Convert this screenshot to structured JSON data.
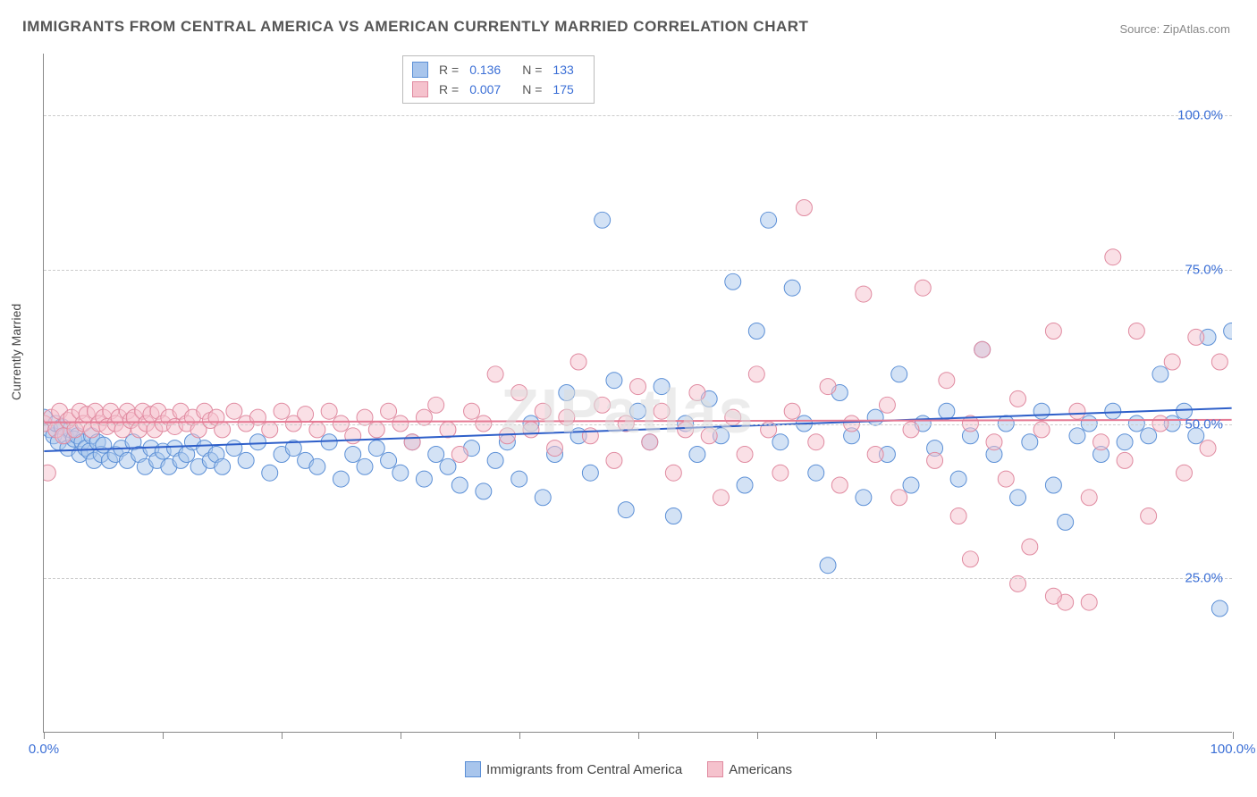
{
  "title": "IMMIGRANTS FROM CENTRAL AMERICA VS AMERICAN CURRENTLY MARRIED CORRELATION CHART",
  "source_label": "Source: ",
  "source_name": "ZipAtlas.com",
  "y_axis_label": "Currently Married",
  "watermark": "ZIPatlas",
  "chart": {
    "type": "scatter",
    "xlim": [
      0,
      100
    ],
    "ylim": [
      0,
      110
    ],
    "x_ticks": [
      0,
      10,
      20,
      30,
      40,
      50,
      60,
      70,
      80,
      90,
      100
    ],
    "x_tick_labels": {
      "0": "0.0%",
      "100": "100.0%"
    },
    "y_gridlines": [
      25,
      50,
      75,
      100
    ],
    "y_tick_labels": {
      "25": "25.0%",
      "50": "50.0%",
      "75": "75.0%",
      "100": "100.0%"
    },
    "background_color": "#ffffff",
    "grid_color": "#cccccc",
    "marker_radius": 9,
    "marker_opacity": 0.5,
    "series": [
      {
        "name": "Immigrants from Central America",
        "fill": "#a8c5ec",
        "stroke": "#5b8fd6",
        "r_label": "R =",
        "r_value": "0.136",
        "n_label": "N =",
        "n_value": "133",
        "trend": {
          "y_at_x0": 45.5,
          "y_at_x100": 52.5,
          "color": "#2e5fc9",
          "width": 2
        },
        "points": [
          [
            0,
            51
          ],
          [
            0.5,
            49
          ],
          [
            0.8,
            48
          ],
          [
            1,
            50
          ],
          [
            1.2,
            47
          ],
          [
            1.5,
            49.5
          ],
          [
            1.8,
            48
          ],
          [
            2,
            46
          ],
          [
            2.2,
            49
          ],
          [
            2.5,
            47.5
          ],
          [
            2.8,
            48
          ],
          [
            3,
            45
          ],
          [
            3.2,
            47
          ],
          [
            3.5,
            46
          ],
          [
            3.8,
            45.5
          ],
          [
            4,
            48
          ],
          [
            4.2,
            44
          ],
          [
            4.5,
            47
          ],
          [
            4.8,
            45
          ],
          [
            5,
            46.5
          ],
          [
            5.5,
            44
          ],
          [
            6,
            45
          ],
          [
            6.5,
            46
          ],
          [
            7,
            44
          ],
          [
            7.5,
            47
          ],
          [
            8,
            45
          ],
          [
            8.5,
            43
          ],
          [
            9,
            46
          ],
          [
            9.5,
            44
          ],
          [
            10,
            45.5
          ],
          [
            10.5,
            43
          ],
          [
            11,
            46
          ],
          [
            11.5,
            44
          ],
          [
            12,
            45
          ],
          [
            12.5,
            47
          ],
          [
            13,
            43
          ],
          [
            13.5,
            46
          ],
          [
            14,
            44
          ],
          [
            14.5,
            45
          ],
          [
            15,
            43
          ],
          [
            16,
            46
          ],
          [
            17,
            44
          ],
          [
            18,
            47
          ],
          [
            19,
            42
          ],
          [
            20,
            45
          ],
          [
            21,
            46
          ],
          [
            22,
            44
          ],
          [
            23,
            43
          ],
          [
            24,
            47
          ],
          [
            25,
            41
          ],
          [
            26,
            45
          ],
          [
            27,
            43
          ],
          [
            28,
            46
          ],
          [
            29,
            44
          ],
          [
            30,
            42
          ],
          [
            31,
            47
          ],
          [
            32,
            41
          ],
          [
            33,
            45
          ],
          [
            34,
            43
          ],
          [
            35,
            40
          ],
          [
            36,
            46
          ],
          [
            37,
            39
          ],
          [
            38,
            44
          ],
          [
            39,
            47
          ],
          [
            40,
            41
          ],
          [
            41,
            50
          ],
          [
            42,
            38
          ],
          [
            43,
            45
          ],
          [
            44,
            55
          ],
          [
            45,
            48
          ],
          [
            46,
            42
          ],
          [
            47,
            83
          ],
          [
            48,
            57
          ],
          [
            49,
            36
          ],
          [
            50,
            52
          ],
          [
            51,
            47
          ],
          [
            52,
            56
          ],
          [
            53,
            35
          ],
          [
            54,
            50
          ],
          [
            55,
            45
          ],
          [
            56,
            54
          ],
          [
            57,
            48
          ],
          [
            58,
            73
          ],
          [
            59,
            40
          ],
          [
            60,
            65
          ],
          [
            61,
            83
          ],
          [
            62,
            47
          ],
          [
            63,
            72
          ],
          [
            64,
            50
          ],
          [
            65,
            42
          ],
          [
            66,
            27
          ],
          [
            67,
            55
          ],
          [
            68,
            48
          ],
          [
            69,
            38
          ],
          [
            70,
            51
          ],
          [
            71,
            45
          ],
          [
            72,
            58
          ],
          [
            73,
            40
          ],
          [
            74,
            50
          ],
          [
            75,
            46
          ],
          [
            76,
            52
          ],
          [
            77,
            41
          ],
          [
            78,
            48
          ],
          [
            79,
            62
          ],
          [
            80,
            45
          ],
          [
            81,
            50
          ],
          [
            82,
            38
          ],
          [
            83,
            47
          ],
          [
            84,
            52
          ],
          [
            85,
            40
          ],
          [
            86,
            34
          ],
          [
            87,
            48
          ],
          [
            88,
            50
          ],
          [
            89,
            45
          ],
          [
            90,
            52
          ],
          [
            91,
            47
          ],
          [
            92,
            50
          ],
          [
            93,
            48
          ],
          [
            94,
            58
          ],
          [
            95,
            50
          ],
          [
            96,
            52
          ],
          [
            97,
            48
          ],
          [
            98,
            64
          ],
          [
            99,
            20
          ],
          [
            100,
            65
          ]
        ]
      },
      {
        "name": "Americans",
        "fill": "#f5c2cd",
        "stroke": "#e08aa0",
        "r_label": "R =",
        "r_value": "0.007",
        "n_label": "N =",
        "n_value": "175",
        "trend": {
          "y_at_x0": 50.2,
          "y_at_x100": 50.6,
          "color": "#e57a94",
          "width": 2
        },
        "points": [
          [
            0,
            50
          ],
          [
            0.3,
            42
          ],
          [
            0.6,
            51
          ],
          [
            1,
            49
          ],
          [
            1.3,
            52
          ],
          [
            1.6,
            48
          ],
          [
            2,
            50.5
          ],
          [
            2.3,
            51
          ],
          [
            2.6,
            49
          ],
          [
            3,
            52
          ],
          [
            3.3,
            50
          ],
          [
            3.6,
            51.5
          ],
          [
            4,
            49
          ],
          [
            4.3,
            52
          ],
          [
            4.6,
            50
          ],
          [
            5,
            51
          ],
          [
            5.3,
            49.5
          ],
          [
            5.6,
            52
          ],
          [
            6,
            50
          ],
          [
            6.3,
            51
          ],
          [
            6.6,
            49
          ],
          [
            7,
            52
          ],
          [
            7.3,
            50.5
          ],
          [
            7.6,
            51
          ],
          [
            8,
            49
          ],
          [
            8.3,
            52
          ],
          [
            8.6,
            50
          ],
          [
            9,
            51.5
          ],
          [
            9.3,
            49
          ],
          [
            9.6,
            52
          ],
          [
            10,
            50
          ],
          [
            10.5,
            51
          ],
          [
            11,
            49.5
          ],
          [
            11.5,
            52
          ],
          [
            12,
            50
          ],
          [
            12.5,
            51
          ],
          [
            13,
            49
          ],
          [
            13.5,
            52
          ],
          [
            14,
            50.5
          ],
          [
            14.5,
            51
          ],
          [
            15,
            49
          ],
          [
            16,
            52
          ],
          [
            17,
            50
          ],
          [
            18,
            51
          ],
          [
            19,
            49
          ],
          [
            20,
            52
          ],
          [
            21,
            50
          ],
          [
            22,
            51.5
          ],
          [
            23,
            49
          ],
          [
            24,
            52
          ],
          [
            25,
            50
          ],
          [
            26,
            48
          ],
          [
            27,
            51
          ],
          [
            28,
            49
          ],
          [
            29,
            52
          ],
          [
            30,
            50
          ],
          [
            31,
            47
          ],
          [
            32,
            51
          ],
          [
            33,
            53
          ],
          [
            34,
            49
          ],
          [
            35,
            45
          ],
          [
            36,
            52
          ],
          [
            37,
            50
          ],
          [
            38,
            58
          ],
          [
            39,
            48
          ],
          [
            40,
            55
          ],
          [
            41,
            49
          ],
          [
            42,
            52
          ],
          [
            43,
            46
          ],
          [
            44,
            51
          ],
          [
            45,
            60
          ],
          [
            46,
            48
          ],
          [
            47,
            53
          ],
          [
            48,
            44
          ],
          [
            49,
            50
          ],
          [
            50,
            56
          ],
          [
            51,
            47
          ],
          [
            52,
            52
          ],
          [
            53,
            42
          ],
          [
            54,
            49
          ],
          [
            55,
            55
          ],
          [
            56,
            48
          ],
          [
            57,
            38
          ],
          [
            58,
            51
          ],
          [
            59,
            45
          ],
          [
            60,
            58
          ],
          [
            61,
            49
          ],
          [
            62,
            42
          ],
          [
            63,
            52
          ],
          [
            64,
            85
          ],
          [
            65,
            47
          ],
          [
            66,
            56
          ],
          [
            67,
            40
          ],
          [
            68,
            50
          ],
          [
            69,
            71
          ],
          [
            70,
            45
          ],
          [
            71,
            53
          ],
          [
            72,
            38
          ],
          [
            73,
            49
          ],
          [
            74,
            72
          ],
          [
            75,
            44
          ],
          [
            76,
            57
          ],
          [
            77,
            35
          ],
          [
            78,
            50
          ],
          [
            79,
            62
          ],
          [
            80,
            47
          ],
          [
            81,
            41
          ],
          [
            82,
            54
          ],
          [
            83,
            30
          ],
          [
            84,
            49
          ],
          [
            85,
            65
          ],
          [
            86,
            21
          ],
          [
            87,
            52
          ],
          [
            88,
            38
          ],
          [
            89,
            47
          ],
          [
            90,
            77
          ],
          [
            91,
            44
          ],
          [
            92,
            65
          ],
          [
            93,
            35
          ],
          [
            94,
            50
          ],
          [
            95,
            60
          ],
          [
            96,
            42
          ],
          [
            97,
            64
          ],
          [
            98,
            46
          ],
          [
            99,
            60
          ],
          [
            85,
            22
          ],
          [
            78,
            28
          ],
          [
            82,
            24
          ],
          [
            88,
            21
          ]
        ]
      }
    ]
  },
  "legend_bottom": [
    {
      "label": "Immigrants from Central America",
      "fill": "#a8c5ec",
      "stroke": "#5b8fd6"
    },
    {
      "label": "Americans",
      "fill": "#f5c2cd",
      "stroke": "#e08aa0"
    }
  ]
}
